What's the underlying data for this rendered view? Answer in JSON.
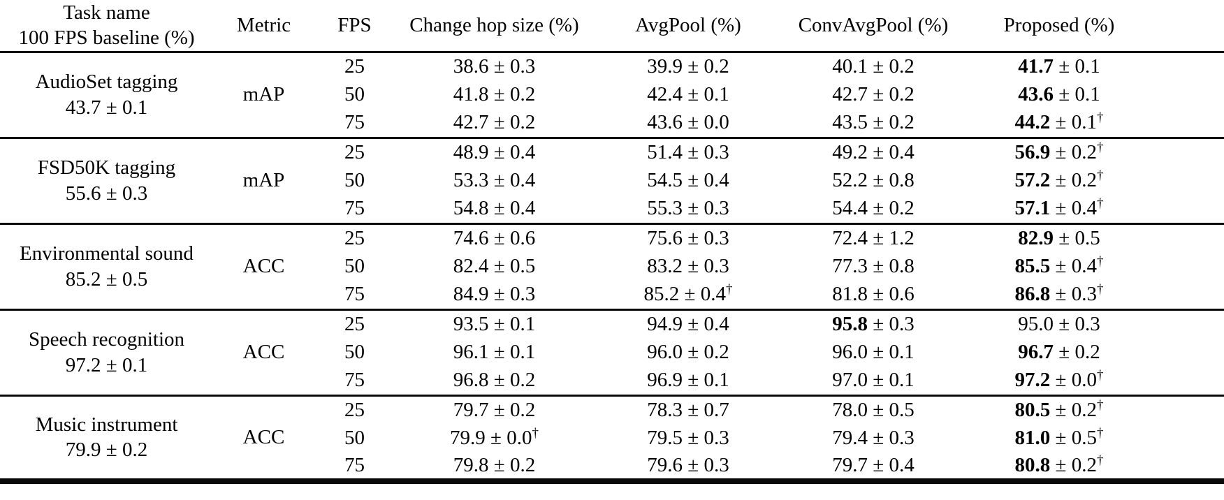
{
  "header": {
    "task_line1": "Task name",
    "task_line2": "100 FPS baseline (%)",
    "metric": "Metric",
    "fps": "FPS",
    "change_hop": "Change hop size (%)",
    "avgpool": "AvgPool (%)",
    "convavgpool": "ConvAvgPool (%)",
    "proposed": "Proposed (%)"
  },
  "value_columns": [
    "Change hop size (%)",
    "AvgPool (%)",
    "ConvAvgPool (%)",
    "Proposed (%)"
  ],
  "plus_minus_symbol": "±",
  "dagger_symbol": "†",
  "blocks": [
    {
      "task": "AudioSet tagging",
      "baseline": "43.7 ± 0.1",
      "metric": "mAP",
      "rows": [
        {
          "fps": "25",
          "cells": [
            {
              "m": "38.6",
              "s": "0.3"
            },
            {
              "m": "39.9",
              "s": "0.2"
            },
            {
              "m": "40.1",
              "s": "0.2"
            },
            {
              "m": "41.7",
              "s": "0.1",
              "b": true
            }
          ]
        },
        {
          "fps": "50",
          "cells": [
            {
              "m": "41.8",
              "s": "0.2"
            },
            {
              "m": "42.4",
              "s": "0.1"
            },
            {
              "m": "42.7",
              "s": "0.2"
            },
            {
              "m": "43.6",
              "s": "0.1",
              "b": true
            }
          ]
        },
        {
          "fps": "75",
          "cells": [
            {
              "m": "42.7",
              "s": "0.2"
            },
            {
              "m": "43.6",
              "s": "0.0"
            },
            {
              "m": "43.5",
              "s": "0.2"
            },
            {
              "m": "44.2",
              "s": "0.1",
              "b": true,
              "d": true
            }
          ]
        }
      ]
    },
    {
      "task": "FSD50K tagging",
      "baseline": "55.6 ± 0.3",
      "metric": "mAP",
      "rows": [
        {
          "fps": "25",
          "cells": [
            {
              "m": "48.9",
              "s": "0.4"
            },
            {
              "m": "51.4",
              "s": "0.3"
            },
            {
              "m": "49.2",
              "s": "0.4"
            },
            {
              "m": "56.9",
              "s": "0.2",
              "b": true,
              "d": true
            }
          ]
        },
        {
          "fps": "50",
          "cells": [
            {
              "m": "53.3",
              "s": "0.4"
            },
            {
              "m": "54.5",
              "s": "0.4"
            },
            {
              "m": "52.2",
              "s": "0.8"
            },
            {
              "m": "57.2",
              "s": "0.2",
              "b": true,
              "d": true
            }
          ]
        },
        {
          "fps": "75",
          "cells": [
            {
              "m": "54.8",
              "s": "0.4"
            },
            {
              "m": "55.3",
              "s": "0.3"
            },
            {
              "m": "54.4",
              "s": "0.2"
            },
            {
              "m": "57.1",
              "s": "0.4",
              "b": true,
              "d": true
            }
          ]
        }
      ]
    },
    {
      "task": "Environmental sound",
      "baseline": "85.2 ± 0.5",
      "metric": "ACC",
      "rows": [
        {
          "fps": "25",
          "cells": [
            {
              "m": "74.6",
              "s": "0.6"
            },
            {
              "m": "75.6",
              "s": "0.3"
            },
            {
              "m": "72.4",
              "s": "1.2"
            },
            {
              "m": "82.9",
              "s": "0.5",
              "b": true
            }
          ]
        },
        {
          "fps": "50",
          "cells": [
            {
              "m": "82.4",
              "s": "0.5"
            },
            {
              "m": "83.2",
              "s": "0.3"
            },
            {
              "m": "77.3",
              "s": "0.8"
            },
            {
              "m": "85.5",
              "s": "0.4",
              "b": true,
              "d": true
            }
          ]
        },
        {
          "fps": "75",
          "cells": [
            {
              "m": "84.9",
              "s": "0.3"
            },
            {
              "m": "85.2",
              "s": "0.4",
              "d": true
            },
            {
              "m": "81.8",
              "s": "0.6"
            },
            {
              "m": "86.8",
              "s": "0.3",
              "b": true,
              "d": true
            }
          ]
        }
      ]
    },
    {
      "task": "Speech recognition",
      "baseline": "97.2 ± 0.1",
      "metric": "ACC",
      "rows": [
        {
          "fps": "25",
          "cells": [
            {
              "m": "93.5",
              "s": "0.1"
            },
            {
              "m": "94.9",
              "s": "0.4"
            },
            {
              "m": "95.8",
              "s": "0.3",
              "b": true
            },
            {
              "m": "95.0",
              "s": "0.3"
            }
          ]
        },
        {
          "fps": "50",
          "cells": [
            {
              "m": "96.1",
              "s": "0.1"
            },
            {
              "m": "96.0",
              "s": "0.2"
            },
            {
              "m": "96.0",
              "s": "0.1"
            },
            {
              "m": "96.7",
              "s": "0.2",
              "b": true
            }
          ]
        },
        {
          "fps": "75",
          "cells": [
            {
              "m": "96.8",
              "s": "0.2"
            },
            {
              "m": "96.9",
              "s": "0.1"
            },
            {
              "m": "97.0",
              "s": "0.1"
            },
            {
              "m": "97.2",
              "s": "0.0",
              "b": true,
              "d": true
            }
          ]
        }
      ]
    },
    {
      "task": "Music instrument",
      "baseline": "79.9 ± 0.2",
      "metric": "ACC",
      "rows": [
        {
          "fps": "25",
          "cells": [
            {
              "m": "79.7",
              "s": "0.2"
            },
            {
              "m": "78.3",
              "s": "0.7"
            },
            {
              "m": "78.0",
              "s": "0.5"
            },
            {
              "m": "80.5",
              "s": "0.2",
              "b": true,
              "d": true
            }
          ]
        },
        {
          "fps": "50",
          "cells": [
            {
              "m": "79.9",
              "s": "0.0",
              "d": true
            },
            {
              "m": "79.5",
              "s": "0.3"
            },
            {
              "m": "79.4",
              "s": "0.3"
            },
            {
              "m": "81.0",
              "s": "0.5",
              "b": true,
              "d": true
            }
          ]
        },
        {
          "fps": "75",
          "cells": [
            {
              "m": "79.8",
              "s": "0.2"
            },
            {
              "m": "79.6",
              "s": "0.3"
            },
            {
              "m": "79.7",
              "s": "0.4"
            },
            {
              "m": "80.8",
              "s": "0.2",
              "b": true,
              "d": true
            }
          ]
        }
      ]
    }
  ]
}
